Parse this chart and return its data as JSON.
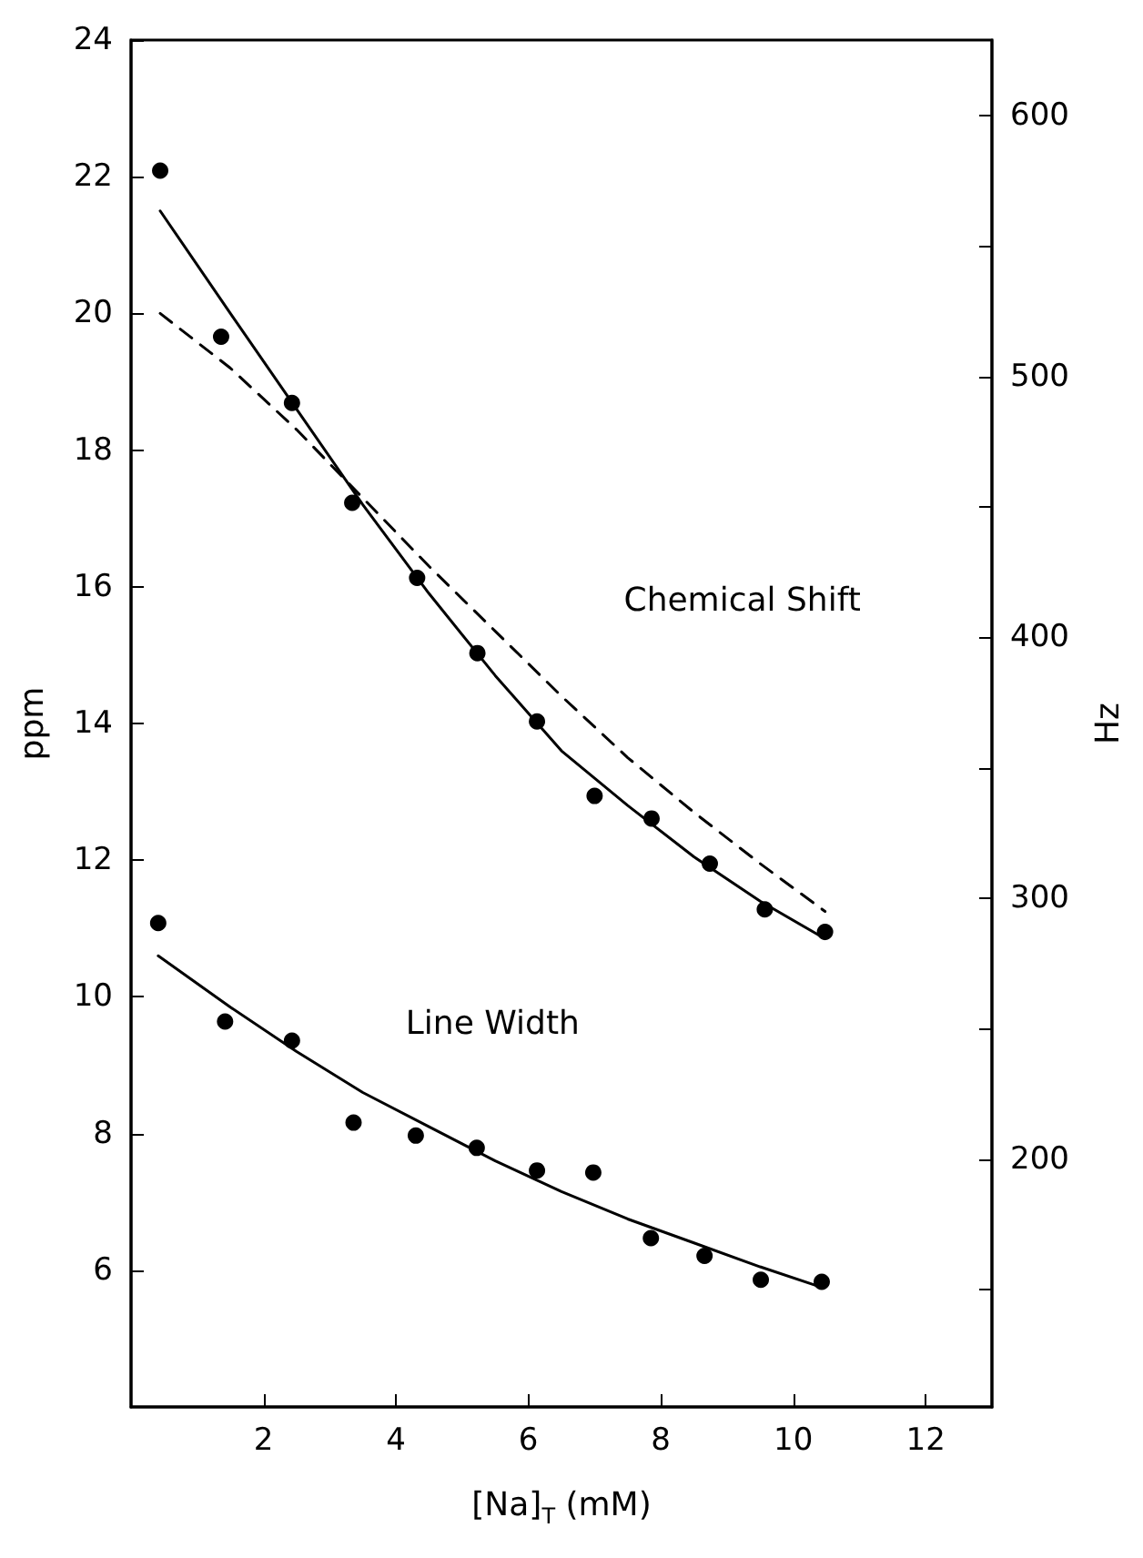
{
  "chart_data": {
    "type": "scatter",
    "xlabel": "[Na]$_{T}$ (mM)",
    "ylabel": "ppm",
    "y2label": "Hz",
    "xlim": [
      0,
      13
    ],
    "xticks": [
      2,
      4,
      6,
      8,
      10,
      12
    ],
    "ylim": [
      4,
      24
    ],
    "yticks": [
      6,
      8,
      10,
      12,
      14,
      16,
      18,
      20,
      22,
      24
    ],
    "y2lim": [
      105,
      629
    ],
    "y2ticks": [
      {
        "value": 150,
        "label": null
      },
      200,
      {
        "value": 250,
        "label": null
      },
      300,
      {
        "value": 350,
        "label": null
      },
      400,
      {
        "value": 450,
        "label": null
      },
      500,
      {
        "value": 550,
        "label": null
      },
      600
    ],
    "grid": false,
    "series": [
      {
        "color": "#000000",
        "marker": "circle",
        "x": [
          0.44,
          1.36,
          2.43,
          3.34,
          4.32,
          5.23,
          6.13,
          7.0,
          7.86,
          8.74,
          9.57,
          10.48
        ],
        "values": [
          22.09,
          19.66,
          18.69,
          17.23,
          16.13,
          15.03,
          14.03,
          12.94,
          12.61,
          11.95,
          11.28,
          10.95
        ]
      },
      {
        "type": "line",
        "color": "#000000",
        "marker": "none",
        "line_style": "solid",
        "x": [
          0.44,
          1.5,
          2.5,
          3.5,
          4.5,
          5.5,
          6.5,
          7.5,
          8.5,
          9.5,
          10.48
        ],
        "values": [
          21.5,
          20.0,
          18.6,
          17.2,
          15.9,
          14.7,
          13.6,
          12.8,
          12.05,
          11.4,
          10.85
        ]
      },
      {
        "type": "line",
        "color": "#000000",
        "marker": "none",
        "line_style": "dashed",
        "x": [
          0.44,
          1.5,
          2.5,
          3.5,
          4.5,
          5.5,
          6.5,
          7.5,
          8.5,
          9.5,
          10.48
        ],
        "values": [
          20.0,
          19.2,
          18.3,
          17.3,
          16.3,
          15.35,
          14.4,
          13.5,
          12.7,
          11.95,
          11.25
        ]
      },
      {
        "color": "#000000",
        "marker": "circle",
        "x": [
          0.41,
          1.42,
          2.43,
          3.36,
          4.3,
          5.22,
          6.13,
          6.98,
          7.85,
          8.66,
          9.51,
          10.43
        ],
        "values": [
          11.08,
          9.64,
          9.36,
          8.16,
          7.97,
          7.79,
          7.46,
          7.43,
          6.47,
          6.21,
          5.86,
          5.83
        ]
      },
      {
        "type": "line",
        "color": "#000000",
        "marker": "none",
        "line_style": "solid",
        "x": [
          0.41,
          1.5,
          2.5,
          3.5,
          4.5,
          5.5,
          6.5,
          7.5,
          8.5,
          9.5,
          10.43
        ],
        "values": [
          10.6,
          9.85,
          9.2,
          8.6,
          8.1,
          7.6,
          7.15,
          6.75,
          6.4,
          6.05,
          5.75
        ]
      }
    ],
    "annotations": [
      "Chemical Shift",
      "Line Width"
    ]
  }
}
